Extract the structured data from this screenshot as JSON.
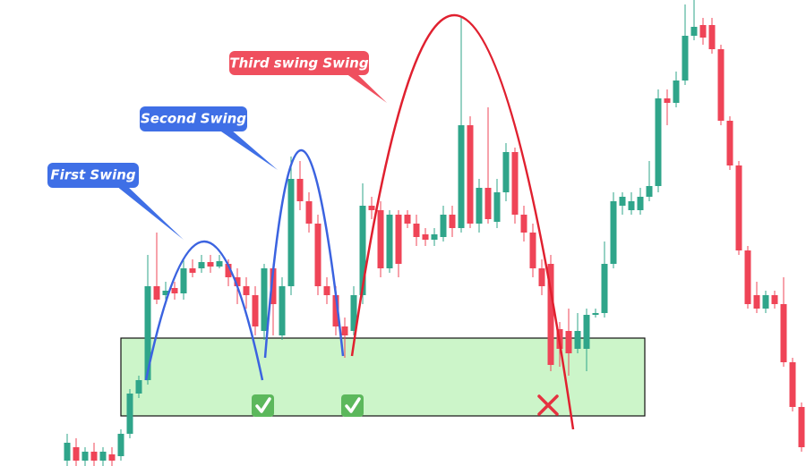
{
  "chart_data": {
    "type": "candlestick",
    "annotations": [
      "First Swing",
      "Second Swing",
      "Third swing Swing"
    ],
    "up_color": "#2fa58a",
    "down_color": "#ef4457",
    "ylim": [
      0,
      521
    ],
    "open": [
      6,
      21,
      6,
      16,
      6,
      13,
      11,
      36,
      81,
      96,
      201,
      191,
      199,
      193,
      221,
      221,
      228,
      223,
      226,
      211,
      201,
      191,
      151,
      221,
      146,
      201,
      321,
      296,
      271,
      201,
      191,
      156,
      151,
      191,
      291,
      286,
      221,
      281,
      281,
      271,
      259,
      253,
      256,
      281,
      266,
      381,
      271,
      311,
      273,
      306,
      351,
      281,
      261,
      221,
      226,
      153,
      151,
      131,
      131,
      169,
      171,
      226,
      291,
      286,
      286,
      301,
      313,
      411,
      406,
      431,
      481,
      493,
      493,
      466,
      386,
      336,
      241,
      191,
      176,
      191,
      181,
      116,
      66
    ],
    "close": [
      26,
      6,
      16,
      6,
      16,
      6,
      36,
      81,
      96,
      201,
      186,
      196,
      193,
      221,
      216,
      228,
      223,
      229,
      211,
      201,
      191,
      156,
      221,
      181,
      201,
      321,
      296,
      271,
      201,
      191,
      156,
      146,
      191,
      291,
      286,
      221,
      281,
      226,
      271,
      256,
      253,
      259,
      281,
      266,
      381,
      271,
      311,
      276,
      306,
      351,
      281,
      261,
      221,
      201,
      113,
      131,
      126,
      151,
      169,
      171,
      226,
      296,
      301,
      296,
      301,
      313,
      411,
      406,
      431,
      481,
      491,
      479,
      466,
      386,
      336,
      241,
      181,
      176,
      191,
      181,
      116,
      66,
      21
    ],
    "high": [
      36,
      31,
      21,
      26,
      21,
      21,
      41,
      86,
      101,
      236,
      261,
      206,
      206,
      231,
      231,
      236,
      236,
      236,
      231,
      221,
      211,
      201,
      226,
      226,
      211,
      346,
      341,
      306,
      281,
      211,
      201,
      166,
      201,
      316,
      301,
      296,
      286,
      286,
      286,
      281,
      266,
      266,
      291,
      291,
      501,
      391,
      321,
      401,
      321,
      361,
      356,
      291,
      271,
      231,
      236,
      161,
      176,
      171,
      176,
      176,
      251,
      306,
      306,
      306,
      311,
      341,
      421,
      421,
      441,
      516,
      521,
      501,
      501,
      471,
      391,
      341,
      246,
      206,
      196,
      196,
      211,
      121,
      71
    ],
    "low": [
      0,
      0,
      0,
      0,
      0,
      0,
      6,
      31,
      76,
      91,
      181,
      186,
      186,
      186,
      211,
      216,
      216,
      221,
      201,
      181,
      176,
      146,
      141,
      146,
      141,
      191,
      286,
      261,
      191,
      181,
      146,
      121,
      146,
      181,
      276,
      211,
      216,
      211,
      266,
      246,
      246,
      246,
      251,
      256,
      261,
      266,
      261,
      271,
      266,
      296,
      271,
      251,
      211,
      191,
      106,
      111,
      101,
      126,
      106,
      166,
      166,
      221,
      281,
      281,
      281,
      296,
      306,
      381,
      401,
      426,
      476,
      471,
      461,
      381,
      331,
      236,
      176,
      171,
      171,
      176,
      111,
      61,
      16
    ]
  }
}
